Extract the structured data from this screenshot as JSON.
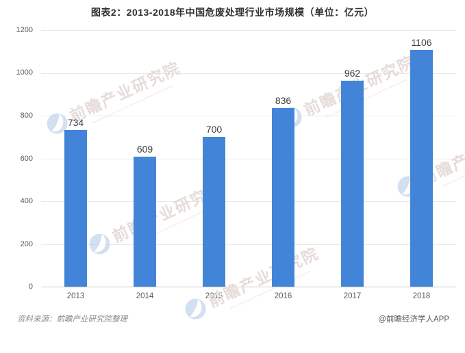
{
  "title": "图表2：2013-2018年中国危废处理行业市场规模（单位：亿元）",
  "chart_data": {
    "type": "bar",
    "categories": [
      "2013",
      "2014",
      "2015",
      "2016",
      "2017",
      "2018"
    ],
    "values": [
      734,
      609,
      700,
      836,
      962,
      1106
    ],
    "title": "图表2：2013-2018年中国危废处理行业市场规模（单位：亿元）",
    "xlabel": "",
    "ylabel": "",
    "ylim": [
      0,
      1200
    ],
    "yticks": [
      0,
      200,
      400,
      600,
      800,
      1000,
      1200
    ],
    "grid": true,
    "legend_position": "none",
    "bar_color": "#4285d8",
    "gridline_color": "#e9e9e9",
    "axis_label_color": "#595959",
    "value_label_color": "#3c3c3c"
  },
  "watermark": {
    "text": "前瞻产业研究院",
    "icon": "qianzhan-globe-icon",
    "text_color": "#e6dcd9",
    "icon_color": "#c3d6ee"
  },
  "footer": {
    "source": "资料来源：前瞻产业研究院整理",
    "credit": "@前瞻经济学人APP"
  }
}
